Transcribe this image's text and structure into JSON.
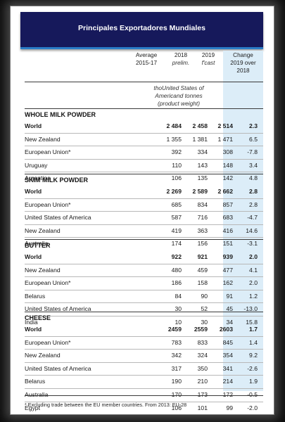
{
  "title": "Principales Exportadores Mundiales",
  "columns": {
    "c1_line1": "Average",
    "c1_line2": "2015-17",
    "c2_line1": "2018",
    "c2_line2": "prelim.",
    "c3_line1": "2019",
    "c3_line2": "f'cast",
    "c4_line1": "Change",
    "c4_line2": "2019 over",
    "c4_line3": "2018"
  },
  "units": {
    "line1": "thoUnited States of",
    "line2": "Americand tonnes",
    "line3": "(product weight)"
  },
  "sections": [
    {
      "name": "WHOLE MILK POWDER",
      "rows": [
        {
          "label": "World",
          "v1": "2 484",
          "v2": "2 458",
          "v3": "2 514",
          "ch": "2.3",
          "bold": true
        },
        {
          "label": "New Zealand",
          "v1": "1 355",
          "v2": "1 381",
          "v3": "1 471",
          "ch": "6.5"
        },
        {
          "label": "European Union*",
          "v1": "392",
          "v2": "334",
          "v3": "308",
          "ch": "-7.8"
        },
        {
          "label": "Uruguay",
          "v1": "110",
          "v2": "143",
          "v3": "148",
          "ch": "3.4"
        },
        {
          "label": "Argentina",
          "v1": "106",
          "v2": "135",
          "v3": "142",
          "ch": "4.8"
        }
      ]
    },
    {
      "name": "SKIM MILK POWDER",
      "rows": [
        {
          "label": "World",
          "v1": "2 269",
          "v2": "2 589",
          "v3": "2 662",
          "ch": "2.8",
          "bold": true
        },
        {
          "label": "European Union*",
          "v1": "685",
          "v2": "834",
          "v3": "857",
          "ch": "2.8"
        },
        {
          "label": "United States of America",
          "v1": "587",
          "v2": "716",
          "v3": "683",
          "ch": "-4.7"
        },
        {
          "label": "New Zealand",
          "v1": "419",
          "v2": "363",
          "v3": "416",
          "ch": "14.6"
        },
        {
          "label": "Australia",
          "v1": "174",
          "v2": "156",
          "v3": "151",
          "ch": "-3.1"
        }
      ]
    },
    {
      "name": "BUTTER",
      "rows": [
        {
          "label": "World",
          "v1": "922",
          "v2": "921",
          "v3": "939",
          "ch": "2.0",
          "bold": true
        },
        {
          "label": "New Zealand",
          "v1": "480",
          "v2": "459",
          "v3": "477",
          "ch": "4.1"
        },
        {
          "label": "European Union*",
          "v1": "186",
          "v2": "158",
          "v3": "162",
          "ch": "2.0"
        },
        {
          "label": "Belarus",
          "v1": "84",
          "v2": "90",
          "v3": "91",
          "ch": "1.2"
        },
        {
          "label": "United States of America",
          "v1": "30",
          "v2": "52",
          "v3": "45",
          "ch": "-13.0"
        },
        {
          "label": "India",
          "v1": "10",
          "v2": "30",
          "v3": "34",
          "ch": "15.8"
        }
      ]
    },
    {
      "name": "CHEESE",
      "rows": [
        {
          "label": "World",
          "v1": "2459",
          "v2": "2559",
          "v3": "2603",
          "ch": "1.7",
          "bold": true
        },
        {
          "label": "European Union*",
          "v1": "783",
          "v2": "833",
          "v3": "845",
          "ch": "1.4"
        },
        {
          "label": "New Zealand",
          "v1": "342",
          "v2": "324",
          "v3": "354",
          "ch": "9.2"
        },
        {
          "label": "United States of America",
          "v1": "317",
          "v2": "350",
          "v3": "341",
          "ch": "-2.6"
        },
        {
          "label": "Belarus",
          "v1": "190",
          "v2": "210",
          "v3": "214",
          "ch": "1.9"
        },
        {
          "label": "Australia",
          "v1": "170",
          "v2": "173",
          "v3": "172",
          "ch": "-0.5"
        },
        {
          "label": "Egypt",
          "v1": "106",
          "v2": "101",
          "v3": "99",
          "ch": "-2.0"
        }
      ]
    }
  ],
  "footnote": "*  Excluding trade between the EU member countries. From 2013: EU-28"
}
